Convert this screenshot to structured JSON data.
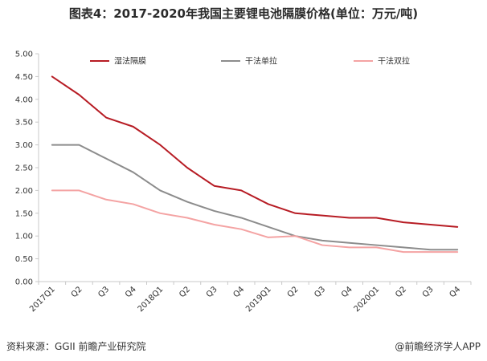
{
  "title": "图表4：2017-2020年我国主要锂电池隔膜价格(单位：万元/吨)",
  "source": "资料来源：GGII 前瞻产业研究院",
  "credit": "@前瞻经济学人APP",
  "colors": {
    "wet": "#b71c24",
    "dry_single": "#8c8c8c",
    "dry_double": "#f4a3a3",
    "axis": "#c8c8c8"
  },
  "chart_data": {
    "type": "line",
    "ylim": [
      0,
      5
    ],
    "y_ticks": [
      "0.00",
      "0.50",
      "1.00",
      "1.50",
      "2.00",
      "2.50",
      "3.00",
      "3.50",
      "4.00",
      "4.50",
      "5.00"
    ],
    "categories": [
      "2017Q1",
      "Q2",
      "Q3",
      "Q4",
      "2018Q1",
      "Q2",
      "Q3",
      "Q4",
      "2019Q1",
      "Q2",
      "Q3",
      "Q4",
      "2020Q1",
      "Q2",
      "Q3",
      "Q4"
    ],
    "legend_position": "top",
    "grid": false,
    "series": [
      {
        "name": "湿法隔膜",
        "color_key": "wet",
        "values": [
          4.5,
          4.1,
          3.6,
          3.4,
          3.0,
          2.5,
          2.1,
          2.0,
          1.7,
          1.5,
          1.45,
          1.4,
          1.4,
          1.3,
          1.25,
          1.2
        ]
      },
      {
        "name": "干法单拉",
        "color_key": "dry_single",
        "values": [
          3.0,
          3.0,
          2.7,
          2.4,
          2.0,
          1.75,
          1.55,
          1.4,
          1.2,
          1.0,
          0.9,
          0.85,
          0.8,
          0.75,
          0.7,
          0.7
        ]
      },
      {
        "name": "干法双拉",
        "color_key": "dry_double",
        "values": [
          2.0,
          2.0,
          1.8,
          1.7,
          1.5,
          1.4,
          1.25,
          1.15,
          0.97,
          1.0,
          0.8,
          0.75,
          0.75,
          0.65,
          0.65,
          0.65
        ]
      }
    ]
  }
}
